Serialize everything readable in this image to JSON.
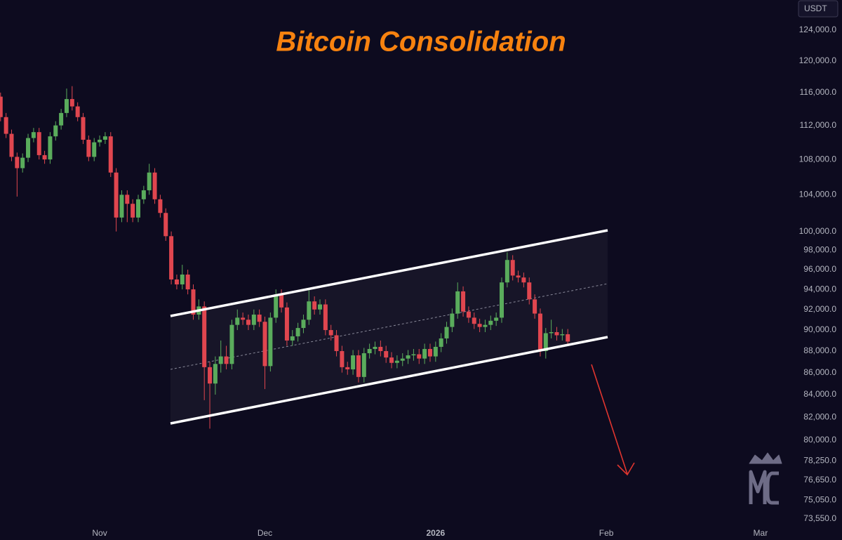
{
  "chart_data": {
    "type": "candlestick",
    "title": "Bitcoin Consolidation",
    "currency_label": "USDT",
    "y_scale": "log",
    "grid": false,
    "up_color": "#5aac5c",
    "down_color": "#e0464f",
    "xlim": [
      -18.1,
      124.6
    ],
    "xticks": [
      {
        "value": 0,
        "label": "Nov"
      },
      {
        "value": 30,
        "label": "Dec"
      },
      {
        "value": 61,
        "label": "2026"
      },
      {
        "value": 92,
        "label": "Feb"
      },
      {
        "value": 120,
        "label": "Mar"
      }
    ],
    "ylim": [
      73220,
      128065
    ],
    "yticks": [
      {
        "value": 124000,
        "label": "124,000.0"
      },
      {
        "value": 120000,
        "label": "120,000.0"
      },
      {
        "value": 116000,
        "label": "116,000.0"
      },
      {
        "value": 112000,
        "label": "112,000.0"
      },
      {
        "value": 108000,
        "label": "108,000.0"
      },
      {
        "value": 104000,
        "label": "104,000.0"
      },
      {
        "value": 100000,
        "label": "100,000.0"
      },
      {
        "value": 98000,
        "label": "98,000.0"
      },
      {
        "value": 96000,
        "label": "96,000.0"
      },
      {
        "value": 94000,
        "label": "94,000.0"
      },
      {
        "value": 92000,
        "label": "92,000.0"
      },
      {
        "value": 90000,
        "label": "90,000.0"
      },
      {
        "value": 88000,
        "label": "88,000.0"
      },
      {
        "value": 86000,
        "label": "86,000.0"
      },
      {
        "value": 84000,
        "label": "84,000.0"
      },
      {
        "value": 82000,
        "label": "82,000.0"
      },
      {
        "value": 80000,
        "label": "80,000.0"
      },
      {
        "value": 78250,
        "label": "78,250.0"
      },
      {
        "value": 76650,
        "label": "76,650.0"
      },
      {
        "value": 75050,
        "label": "75,050.0"
      },
      {
        "value": 73550,
        "label": "73,550.0"
      }
    ],
    "x": [
      -18,
      -17,
      -16,
      -15,
      -14,
      -13,
      -12,
      -11,
      -10,
      -9,
      -8,
      -7,
      -6,
      -5,
      -4,
      -3,
      -2,
      -1,
      0,
      1,
      2,
      3,
      4,
      5,
      6,
      7,
      8,
      9,
      10,
      11,
      12,
      13,
      14,
      15,
      16,
      17,
      18,
      19,
      20,
      21,
      22,
      23,
      24,
      25,
      26,
      27,
      28,
      29,
      30,
      31,
      32,
      33,
      34,
      35,
      36,
      37,
      38,
      39,
      40,
      41,
      42,
      43,
      44,
      45,
      46,
      47,
      48,
      49,
      50,
      51,
      52,
      53,
      54,
      55,
      56,
      57,
      58,
      59,
      60,
      61,
      62,
      63,
      64,
      65,
      66,
      67,
      68,
      69,
      70,
      71,
      72,
      73,
      74,
      75,
      76,
      77,
      78,
      79,
      80,
      81,
      82,
      83,
      84,
      85
    ],
    "open": [
      115500,
      113000,
      111000,
      108300,
      107000,
      108200,
      110500,
      111200,
      108500,
      108000,
      110700,
      112000,
      113500,
      115200,
      114300,
      113000,
      110300,
      108300,
      110000,
      110300,
      110700,
      106500,
      101500,
      104000,
      103000,
      101500,
      103500,
      104500,
      106500,
      103500,
      102000,
      99500,
      95000,
      94500,
      95500,
      94000,
      91500,
      92300,
      86500,
      85000,
      86800,
      87500,
      86800,
      90500,
      91200,
      91000,
      90500,
      91500,
      90800,
      86600,
      91200,
      93500,
      92200,
      89000,
      89400,
      90200,
      91000,
      92800,
      92000,
      92500,
      90000,
      89500,
      88000,
      86500,
      86300,
      87600,
      85600,
      87800,
      88200,
      88400,
      88000,
      87400,
      86900,
      87100,
      87300,
      87600,
      87700,
      87300,
      88200,
      87500,
      88400,
      89200,
      90300,
      91600,
      93800,
      91800,
      91200,
      90600,
      90300,
      90500,
      90900,
      91200,
      94700,
      97000,
      95400,
      95200,
      94700,
      93000,
      91600,
      88000,
      89700,
      89800,
      89500,
      89600
    ],
    "high": [
      116000,
      113500,
      111500,
      108800,
      108700,
      111000,
      111700,
      111700,
      109000,
      111200,
      112500,
      114000,
      116500,
      116800,
      114800,
      113500,
      110800,
      110500,
      110800,
      111200,
      111200,
      107000,
      104500,
      104500,
      103500,
      104000,
      105000,
      107500,
      107000,
      104000,
      102500,
      100000,
      95500,
      96500,
      96000,
      94500,
      93000,
      92800,
      87000,
      87500,
      89000,
      88500,
      91000,
      92000,
      91700,
      91500,
      92000,
      92000,
      91300,
      91700,
      94000,
      94000,
      92700,
      90000,
      90700,
      91500,
      94000,
      93300,
      93000,
      93000,
      90500,
      90000,
      88500,
      87000,
      88100,
      88100,
      88300,
      88700,
      88900,
      89000,
      88500,
      87900,
      87600,
      87800,
      88100,
      88200,
      88200,
      88700,
      88700,
      88900,
      89700,
      90800,
      92100,
      94700,
      94300,
      92300,
      91700,
      91100,
      91000,
      91400,
      91700,
      95200,
      97800,
      97500,
      95900,
      95700,
      95200,
      93500,
      92100,
      90200,
      91000,
      90300,
      90100,
      90100
    ],
    "low": [
      112500,
      110500,
      107800,
      103800,
      106500,
      107700,
      110000,
      108000,
      107500,
      107500,
      110200,
      111500,
      113000,
      113800,
      112500,
      109800,
      107800,
      107800,
      109500,
      109800,
      106000,
      100000,
      101000,
      101000,
      101000,
      101000,
      103000,
      104000,
      103000,
      101500,
      99000,
      94500,
      94000,
      94000,
      93500,
      91000,
      91000,
      83500,
      81000,
      84000,
      86000,
      86300,
      86300,
      90000,
      90500,
      90000,
      90000,
      90300,
      84500,
      86100,
      90700,
      91700,
      88500,
      88500,
      88900,
      89700,
      90500,
      91500,
      91500,
      89500,
      89000,
      87500,
      86000,
      85800,
      85800,
      85100,
      85100,
      87300,
      87700,
      87500,
      86900,
      86400,
      86400,
      86600,
      86800,
      87100,
      86800,
      86800,
      87000,
      87000,
      87900,
      88700,
      89800,
      91100,
      91300,
      90700,
      90100,
      89800,
      89800,
      90000,
      90400,
      90700,
      94200,
      94900,
      94700,
      94200,
      92500,
      91100,
      87500,
      87300,
      89200,
      89000,
      89000,
      88500
    ],
    "close": [
      113000,
      111000,
      108300,
      107000,
      108200,
      110500,
      111200,
      108500,
      108000,
      110700,
      112000,
      113500,
      115200,
      114300,
      113000,
      110300,
      108300,
      110000,
      110300,
      110700,
      106500,
      101500,
      104000,
      103000,
      101500,
      103500,
      104500,
      106500,
      103500,
      102000,
      99500,
      95000,
      94500,
      95500,
      94000,
      91500,
      92300,
      86500,
      85000,
      86800,
      87500,
      86800,
      90500,
      91200,
      91000,
      90500,
      91500,
      90800,
      86600,
      91200,
      93500,
      92200,
      89000,
      89400,
      90200,
      91000,
      92800,
      92000,
      92500,
      90000,
      89500,
      88000,
      86500,
      86300,
      87600,
      85600,
      87800,
      88200,
      88400,
      88000,
      87400,
      86900,
      87100,
      87300,
      87600,
      87700,
      87300,
      88200,
      87500,
      88400,
      89200,
      90300,
      91600,
      93800,
      91800,
      91200,
      90600,
      90300,
      90500,
      90900,
      91200,
      94700,
      97000,
      95400,
      95200,
      94700,
      93000,
      91600,
      88000,
      89700,
      89800,
      89500,
      89600,
      88900
    ]
  }
}
